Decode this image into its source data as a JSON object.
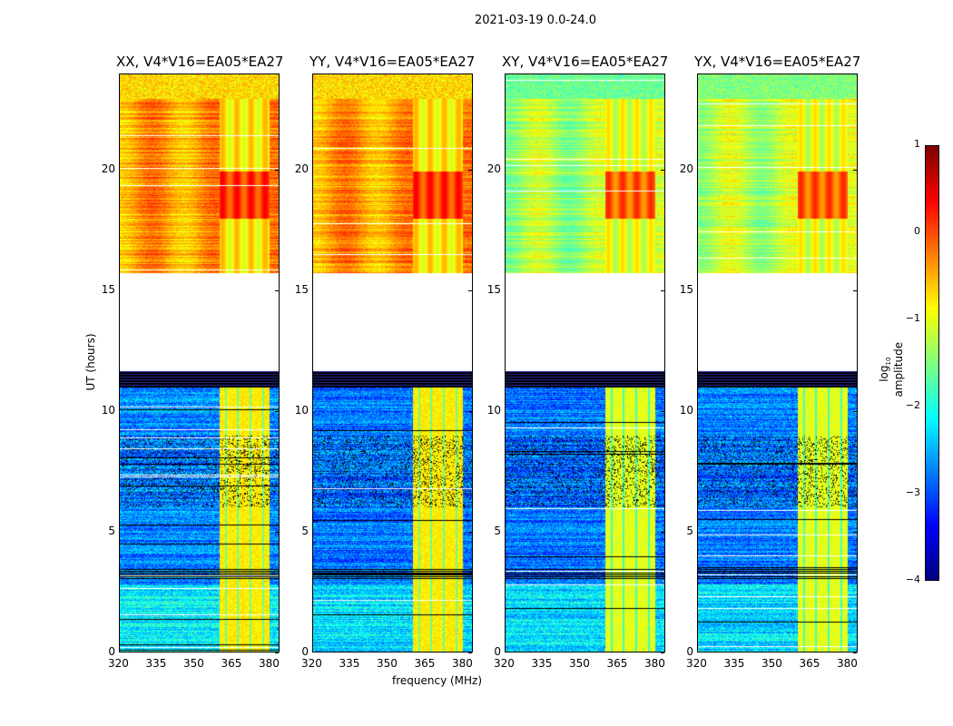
{
  "chart_data": {
    "type": "heatmap",
    "title": "2021-03-19 0.0-24.0",
    "xlabel": "frequency (MHz)",
    "ylabel": "UT (hours)",
    "xlim": [
      320,
      384
    ],
    "ylim": [
      0,
      24
    ],
    "xticks": [
      320,
      335,
      350,
      365,
      380
    ],
    "yticks": [
      0,
      5,
      10,
      15,
      20
    ],
    "panels": [
      {
        "title": "XX, V4*V16=EA05*EA27",
        "high_level": -0.4,
        "low_level": -2.7,
        "band_level": -0.8
      },
      {
        "title": "YY, V4*V16=EA05*EA27",
        "high_level": -0.4,
        "low_level": -2.8,
        "band_level": -0.8
      },
      {
        "title": "XY, V4*V16=EA05*EA27",
        "high_level": -1.3,
        "low_level": -2.8,
        "band_level": -1.0
      },
      {
        "title": "YX, V4*V16=EA05*EA27",
        "high_level": -1.2,
        "low_level": -2.8,
        "band_level": -1.0
      }
    ],
    "data_gap_hours": [
      11.67,
      15.75
    ],
    "rfi_band_mhz": [
      360,
      380
    ],
    "colorbar": {
      "label": "log10 amplitude",
      "label_main": "log",
      "label_sub": "10",
      "label_rest": " amplitude",
      "ticks": [
        1,
        0,
        -1,
        -2,
        -3,
        -4
      ],
      "range": [
        -4,
        1
      ],
      "colormap": "jet"
    }
  }
}
